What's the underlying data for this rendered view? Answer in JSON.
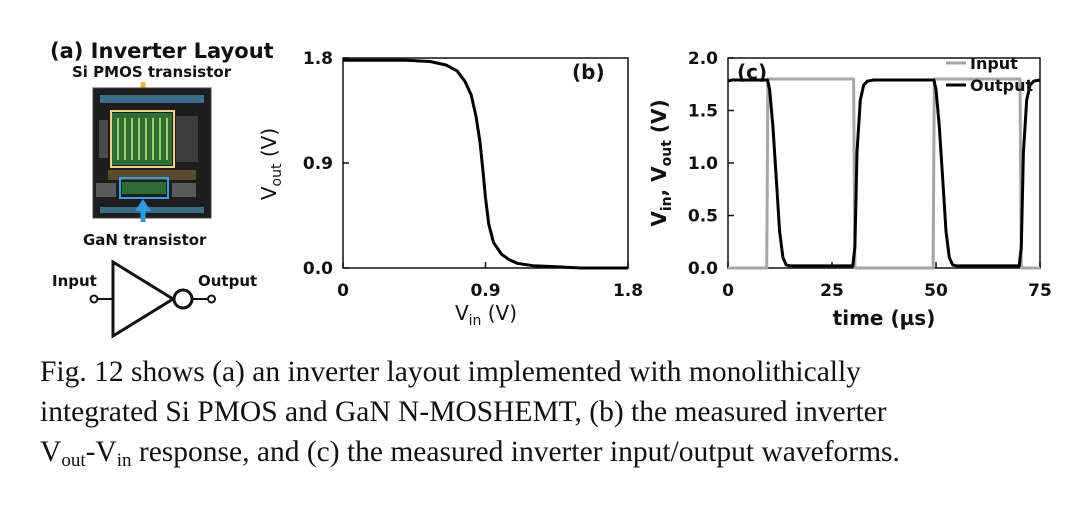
{
  "panel_a": {
    "title": "(a) Inverter Layout",
    "pmos_label": "Si PMOS transistor",
    "gan_label": "GaN transistor",
    "input_label": "Input",
    "output_label": "Output"
  },
  "chart_data": [
    {
      "type": "line",
      "panel_label": "(b)",
      "xlabel": "V_in (V)",
      "ylabel": "V_out (V)",
      "xlim": [
        0,
        1.8
      ],
      "ylim": [
        0,
        1.8
      ],
      "x_ticks": [
        "0",
        "0.9",
        "1.8"
      ],
      "y_ticks": [
        "0.0",
        "0.9",
        "1.8"
      ],
      "series": [
        {
          "color": "#000000",
          "x": [
            0,
            0.2,
            0.4,
            0.55,
            0.65,
            0.72,
            0.77,
            0.81,
            0.84,
            0.865,
            0.885,
            0.9,
            0.92,
            0.95,
            1.0,
            1.05,
            1.1,
            1.2,
            1.35,
            1.5,
            1.8
          ],
          "y": [
            1.78,
            1.78,
            1.78,
            1.77,
            1.74,
            1.69,
            1.6,
            1.48,
            1.3,
            1.08,
            0.82,
            0.6,
            0.38,
            0.22,
            0.12,
            0.07,
            0.04,
            0.02,
            0.01,
            0,
            0
          ]
        }
      ]
    },
    {
      "type": "line",
      "panel_label": "(c)",
      "xlabel": "time (µs)",
      "ylabel": "V_in, V_out (V)",
      "xlim": [
        0,
        75
      ],
      "ylim": [
        0,
        2.0
      ],
      "x_ticks": [
        "0",
        "25",
        "50",
        "75"
      ],
      "y_ticks": [
        "0.0",
        "0.5",
        "1.0",
        "1.5",
        "2.0"
      ],
      "legend_position": "top-right",
      "series": [
        {
          "name": "Input",
          "color": "#a6a6a6",
          "x": [
            0,
            9.3,
            9.6,
            30.2,
            30.5,
            49.3,
            49.6,
            70.2,
            70.5,
            75
          ],
          "y": [
            0,
            0,
            1.8,
            1.8,
            0,
            0,
            1.8,
            1.8,
            0,
            0
          ]
        },
        {
          "name": "Output",
          "color": "#000000",
          "x": [
            0,
            1.0,
            9.5,
            10.0,
            10.8,
            11.6,
            12.4,
            13.2,
            14.0,
            15.0,
            30.0,
            30.5,
            31.0,
            31.8,
            32.6,
            33.5,
            35.0,
            49.5,
            50.0,
            50.8,
            51.6,
            52.4,
            53.2,
            54.0,
            55.0,
            70.0,
            70.5,
            71.0,
            71.8,
            72.6,
            73.5,
            75.0
          ],
          "y": [
            1.78,
            1.79,
            1.79,
            1.7,
            1.35,
            0.85,
            0.35,
            0.1,
            0.03,
            0.02,
            0.02,
            0.2,
            1.1,
            1.6,
            1.74,
            1.78,
            1.79,
            1.79,
            1.7,
            1.35,
            0.85,
            0.35,
            0.1,
            0.03,
            0.02,
            0.02,
            0.2,
            1.1,
            1.6,
            1.74,
            1.78,
            1.79
          ]
        }
      ]
    }
  ],
  "caption": {
    "line1": "Fig. 12 shows (a) an inverter layout implemented with monolithically",
    "line2": "integrated Si PMOS and GaN N-MOSHEMT, (b) the measured inverter",
    "line3_v1": "V",
    "line3_sub1": "out",
    "line3_dash": "-V",
    "line3_sub2": "in",
    "line3_rest": " response, and (c) the measured inverter input/output waveforms."
  }
}
